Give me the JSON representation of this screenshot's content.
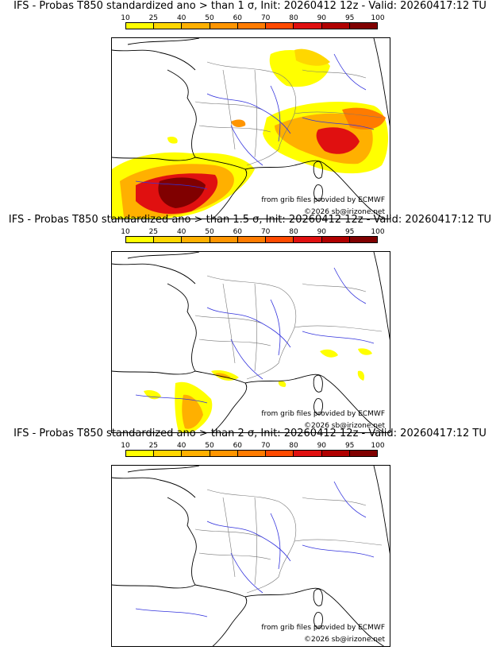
{
  "colorbar": {
    "ticks": [
      "10",
      "25",
      "40",
      "50",
      "60",
      "70",
      "80",
      "90",
      "95",
      "100"
    ],
    "colors": [
      "#ffff00",
      "#ffd700",
      "#ffb000",
      "#ff9500",
      "#ff7b00",
      "#ff4a00",
      "#e01010",
      "#b00000",
      "#800000"
    ]
  },
  "panels": [
    {
      "title": "IFS - Probas T850  standardized ano > than 1 σ, Init: 20260412 12z - Valid: 20260417:12 TU",
      "credit_source": "from grib files provided by ECMWF",
      "credit_copy": "©2026 sb@irizone.net"
    },
    {
      "title": "IFS - Probas T850  standardized ano > than 1.5 σ, Init: 20260412 12z - Valid: 20260417:12 TU",
      "credit_source": "from grib files provided by ECMWF",
      "credit_copy": "©2026 sb@irizone.net"
    },
    {
      "title": "IFS - Probas T850  standardized ano > than 2 σ, Init: 20260412 12z - Valid: 20260417:12 TU",
      "credit_source": "from grib files provided by ECMWF",
      "credit_copy": "©2026 sb@irizone.net"
    }
  ]
}
